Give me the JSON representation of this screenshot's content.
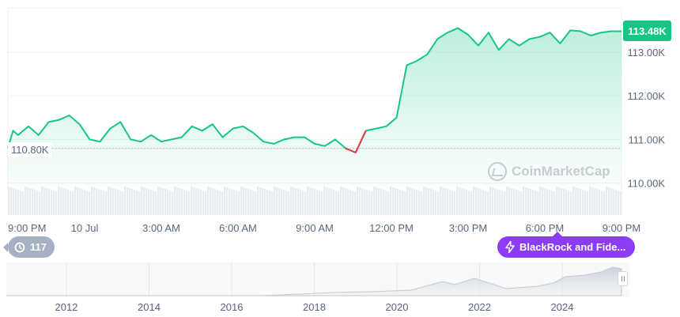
{
  "chart_data": {
    "type": "area",
    "y_ticks": [
      "113.00K",
      "112.00K",
      "111.00K",
      "110.00K"
    ],
    "y_tick_values": [
      113000,
      112000,
      111000,
      110000
    ],
    "ylim": [
      109600,
      113900
    ],
    "x_tick_labels": [
      "9:00 PM",
      "10 Jul",
      "3:00 AM",
      "6:00 AM",
      "9:00 AM",
      "12:00 PM",
      "3:00 PM",
      "6:00 PM",
      "9:00 PM"
    ],
    "x_tick_hours": [
      0,
      3,
      6,
      9,
      12,
      15,
      18,
      21,
      24
    ],
    "current_price_label": "113.48K",
    "open_price_label": "110.80K",
    "open_price": 110800,
    "series": [
      {
        "hours": [
          0.0,
          0.2,
          0.4,
          0.8,
          1.2,
          1.6,
          2.0,
          2.4,
          2.8,
          3.2,
          3.6,
          4.0,
          4.4,
          4.8,
          5.2,
          5.6,
          6.0,
          6.4,
          6.8,
          7.2,
          7.6,
          8.0,
          8.4,
          8.8,
          9.2,
          9.6,
          10.0,
          10.4,
          10.8,
          11.2,
          11.6,
          12.0,
          12.4,
          12.8,
          13.2,
          13.6,
          14.0,
          14.4,
          14.8,
          15.2,
          15.6,
          16.0,
          16.4,
          16.8,
          17.2,
          17.6,
          18.0,
          18.4,
          18.8,
          19.2,
          19.6,
          20.0,
          20.4,
          20.8,
          21.2,
          21.6,
          22.0,
          22.4,
          22.8,
          23.2,
          23.6,
          24.0
        ],
        "values": [
          110800,
          111200,
          111100,
          111300,
          111100,
          111400,
          111450,
          111550,
          111350,
          111000,
          110950,
          111250,
          111400,
          111000,
          110950,
          111100,
          110950,
          111000,
          111050,
          111300,
          111200,
          111350,
          111050,
          111250,
          111300,
          111150,
          110950,
          110900,
          111000,
          111050,
          111050,
          110900,
          110850,
          111000,
          110800,
          110700,
          111200,
          111250,
          111300,
          111500,
          112700,
          112800,
          112950,
          113300,
          113450,
          113550,
          113400,
          113150,
          113450,
          113050,
          113300,
          113150,
          113300,
          113350,
          113450,
          113200,
          113500,
          113480,
          113380,
          113450,
          113480,
          113480
        ]
      }
    ],
    "overview_year_labels": [
      "2012",
      "2014",
      "2016",
      "2018",
      "2020",
      "2022",
      "2024"
    ],
    "watermark": "CoinMarketCap",
    "colors": {
      "line": "#16c784",
      "down": "#ea3943",
      "grid": "#eff2f5",
      "text": "#58667e"
    }
  },
  "history_count": "117",
  "news_label": "BlackRock and Fide...",
  "icons": {
    "history": "history-icon",
    "news": "lightning-icon",
    "logo": "coinmarketcap-logo-icon"
  }
}
